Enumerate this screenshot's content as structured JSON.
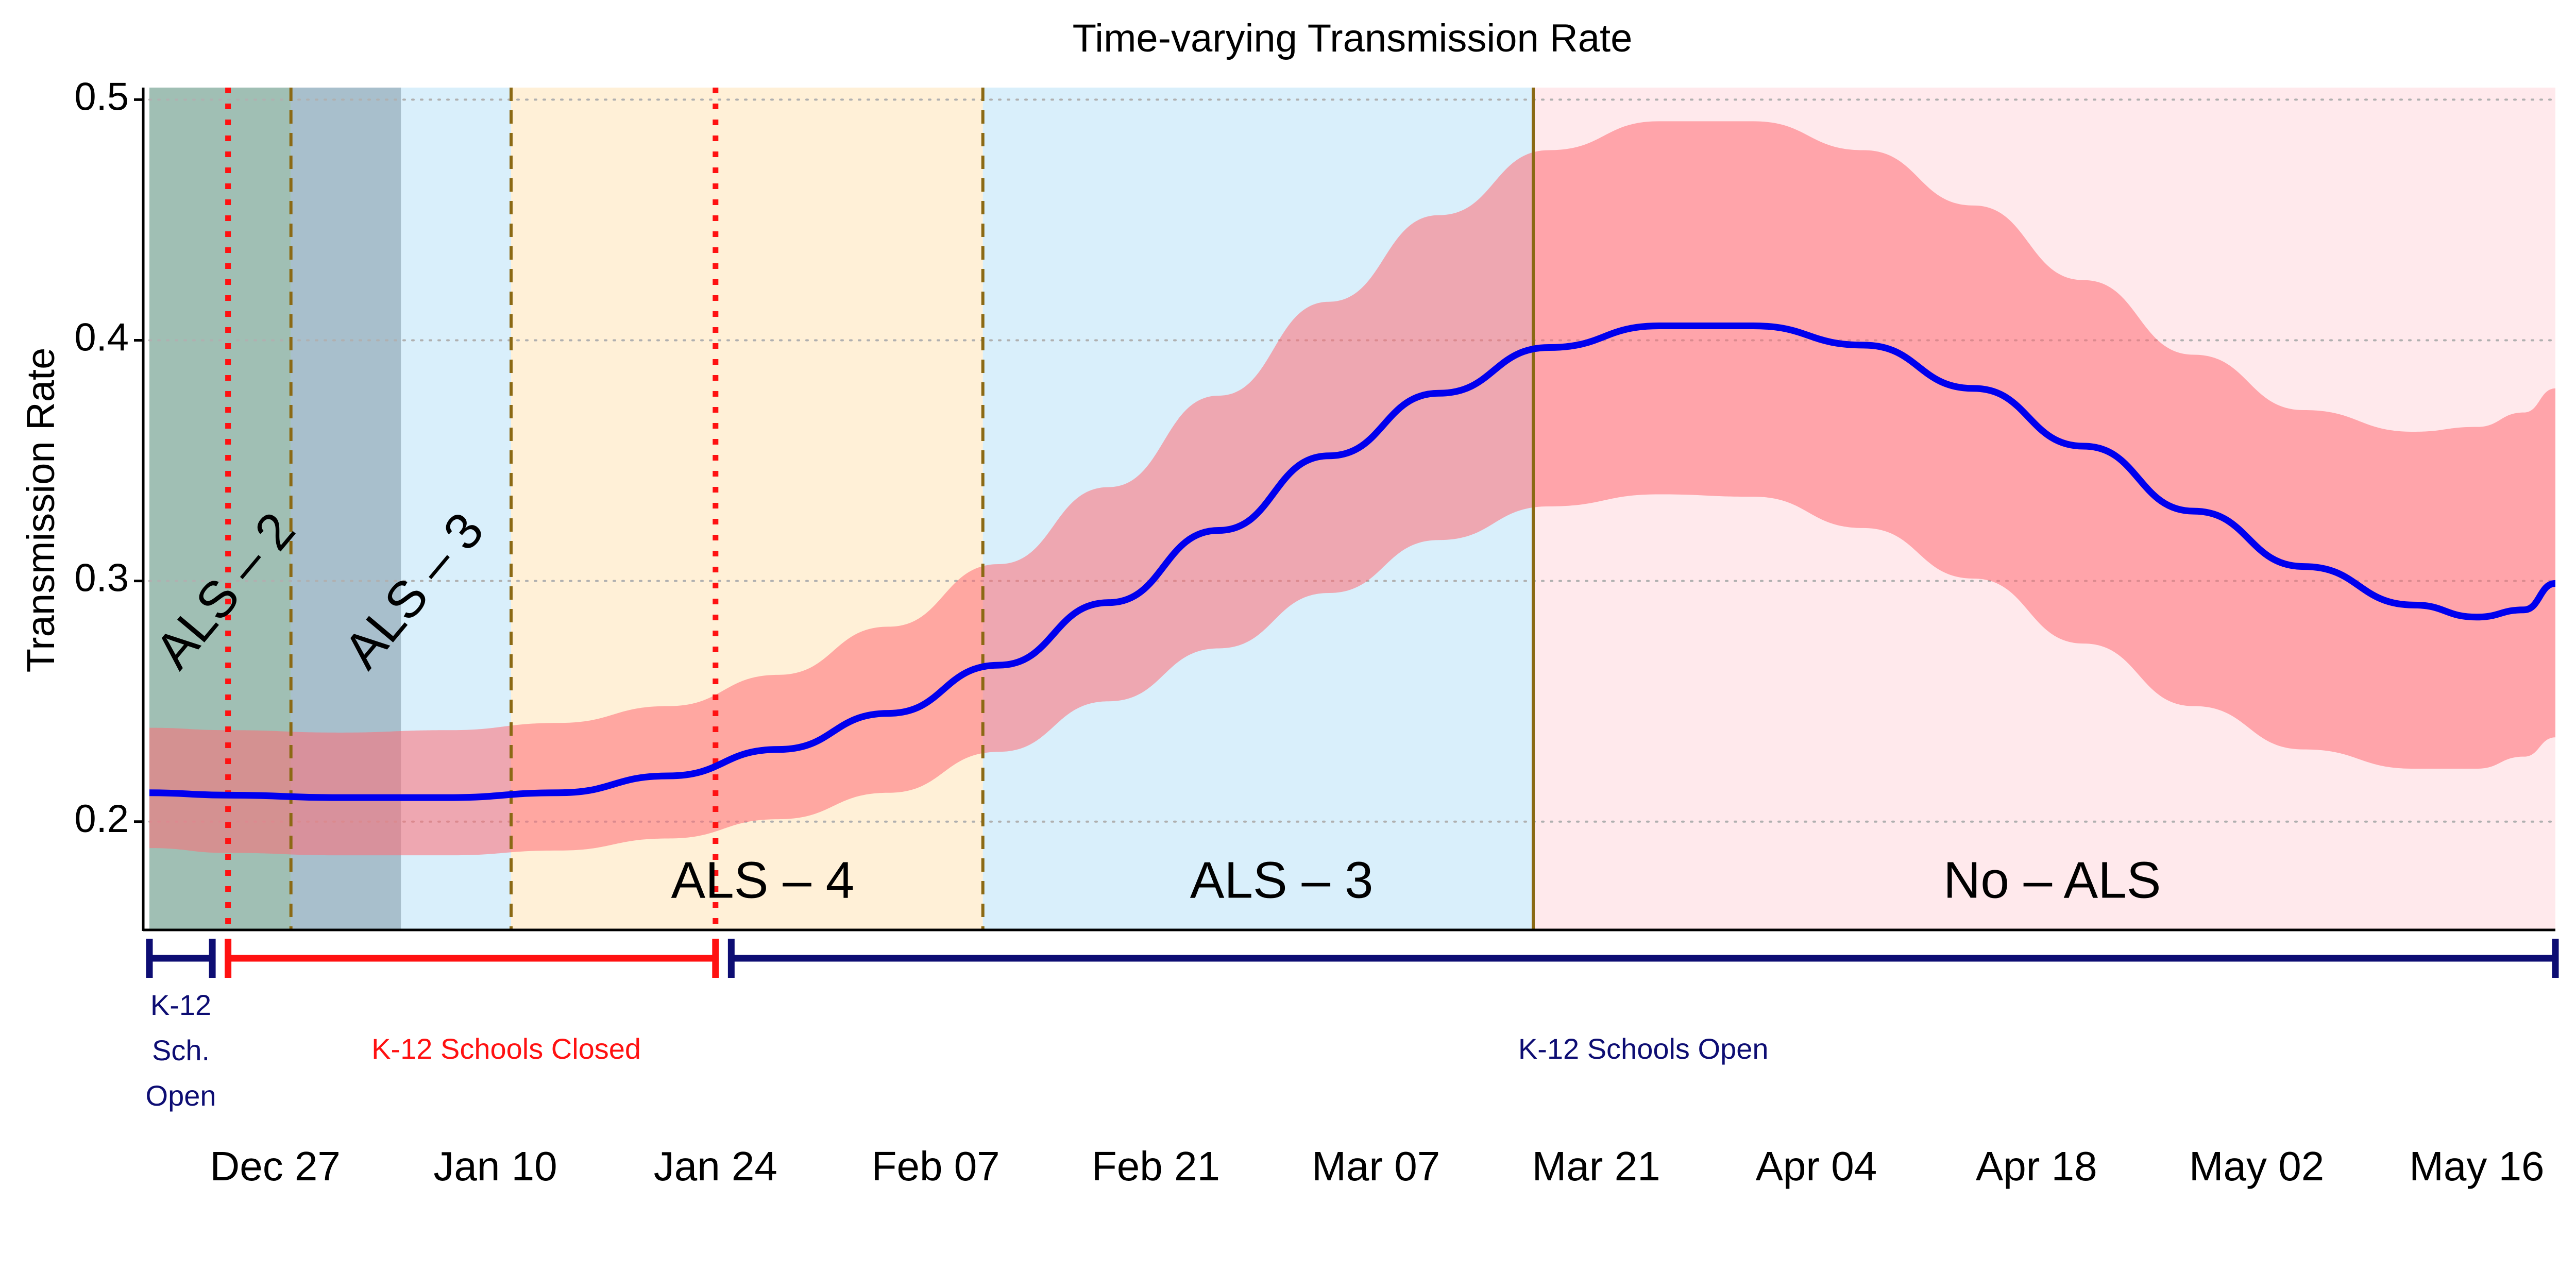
{
  "chart_data": {
    "type": "line",
    "title": "Time-varying Transmission Rate",
    "xlabel": "",
    "ylabel": "Transmission Rate",
    "x_type": "date",
    "xlim": [
      "2020-12-19",
      "2021-05-21"
    ],
    "ylim": [
      0.155,
      0.505
    ],
    "y_ticks": [
      0.2,
      0.3,
      0.4,
      0.5
    ],
    "y_tick_labels": [
      "0.2",
      "0.3",
      "0.4",
      "0.5"
    ],
    "x_ticks": [
      "2020-12-27",
      "2021-01-10",
      "2021-01-24",
      "2021-02-07",
      "2021-02-21",
      "2021-03-07",
      "2021-03-21",
      "2021-04-04",
      "2021-04-18",
      "2021-05-02",
      "2021-05-16"
    ],
    "x_tick_labels": [
      "Dec 27",
      "Jan 10",
      "Jan 24",
      "Feb 07",
      "Feb 21",
      "Mar 07",
      "Mar 21",
      "Apr 04",
      "Apr 18",
      "May 02",
      "May 16"
    ],
    "grid": "horizontal dotted",
    "series": [
      {
        "kind": "line",
        "color": "#0000ee",
        "points": [
          [
            "2020-12-19",
            0.212
          ],
          [
            "2020-12-24",
            0.211
          ],
          [
            "2020-12-31",
            0.21
          ],
          [
            "2021-01-07",
            0.21
          ],
          [
            "2021-01-14",
            0.212
          ],
          [
            "2021-01-21",
            0.219
          ],
          [
            "2021-01-28",
            0.23
          ],
          [
            "2021-02-04",
            0.245
          ],
          [
            "2021-02-11",
            0.265
          ],
          [
            "2021-02-18",
            0.291
          ],
          [
            "2021-02-25",
            0.321
          ],
          [
            "2021-03-04",
            0.352
          ],
          [
            "2021-03-11",
            0.378
          ],
          [
            "2021-03-18",
            0.397
          ],
          [
            "2021-03-25",
            0.406
          ],
          [
            "2021-03-31",
            0.406
          ],
          [
            "2021-04-07",
            0.398
          ],
          [
            "2021-04-14",
            0.38
          ],
          [
            "2021-04-21",
            0.356
          ],
          [
            "2021-04-28",
            0.329
          ],
          [
            "2021-05-05",
            0.306
          ],
          [
            "2021-05-12",
            0.29
          ],
          [
            "2021-05-16",
            0.285
          ],
          [
            "2021-05-19",
            0.288
          ],
          [
            "2021-05-21",
            0.299
          ]
        ]
      },
      {
        "kind": "band",
        "color": "#ff6b74",
        "points": [
          [
            "2020-12-19",
            0.189,
            0.239
          ],
          [
            "2020-12-24",
            0.187,
            0.238
          ],
          [
            "2020-12-31",
            0.186,
            0.237
          ],
          [
            "2021-01-07",
            0.186,
            0.238
          ],
          [
            "2021-01-14",
            0.188,
            0.241
          ],
          [
            "2021-01-21",
            0.193,
            0.248
          ],
          [
            "2021-01-28",
            0.201,
            0.261
          ],
          [
            "2021-02-04",
            0.212,
            0.281
          ],
          [
            "2021-02-11",
            0.229,
            0.307
          ],
          [
            "2021-02-18",
            0.25,
            0.339
          ],
          [
            "2021-02-25",
            0.272,
            0.377
          ],
          [
            "2021-03-04",
            0.295,
            0.416
          ],
          [
            "2021-03-11",
            0.317,
            0.452
          ],
          [
            "2021-03-18",
            0.331,
            0.479
          ],
          [
            "2021-03-25",
            0.336,
            0.491
          ],
          [
            "2021-03-31",
            0.335,
            0.491
          ],
          [
            "2021-04-07",
            0.322,
            0.479
          ],
          [
            "2021-04-14",
            0.301,
            0.456
          ],
          [
            "2021-04-21",
            0.274,
            0.425
          ],
          [
            "2021-04-28",
            0.248,
            0.394
          ],
          [
            "2021-05-05",
            0.23,
            0.371
          ],
          [
            "2021-05-12",
            0.222,
            0.362
          ],
          [
            "2021-05-16",
            0.222,
            0.364
          ],
          [
            "2021-05-19",
            0.227,
            0.37
          ],
          [
            "2021-05-21",
            0.235,
            0.38
          ]
        ]
      }
    ],
    "regions": [
      {
        "from": "2020-12-19",
        "to": "2020-12-28",
        "color": "#a0bfb4"
      },
      {
        "from": "2020-12-28",
        "to": "2021-01-04",
        "color": "#a8bfcc"
      },
      {
        "from": "2021-01-04",
        "to": "2021-01-11",
        "color": "#d9effb"
      },
      {
        "from": "2021-01-11",
        "to": "2021-02-10",
        "color": "#fff0d7"
      },
      {
        "from": "2021-02-10",
        "to": "2021-03-17",
        "color": "#d9effb"
      },
      {
        "from": "2021-03-17",
        "to": "2021-05-21",
        "color": "#ffe9ec"
      }
    ],
    "vlines": [
      {
        "x": "2020-12-24",
        "style": "dotted",
        "color": "#ff1111"
      },
      {
        "x": "2021-01-24",
        "style": "dotted",
        "color": "#ff1111"
      },
      {
        "x": "2020-12-28",
        "style": "dashed",
        "color": "#8b6914"
      },
      {
        "x": "2021-01-11",
        "style": "dashed",
        "color": "#8b6914"
      },
      {
        "x": "2021-02-10",
        "style": "dashed",
        "color": "#8b6914"
      },
      {
        "x": "2021-03-17",
        "style": "solid",
        "color": "#8b6914"
      }
    ],
    "region_labels": [
      {
        "text": "ALS – 2",
        "x": "2020-12-24",
        "y": 0.295,
        "rotate": -50
      },
      {
        "text": "ALS – 3",
        "x": "2021-01-05",
        "y": 0.295,
        "rotate": -50
      },
      {
        "text": "ALS – 4",
        "x": "2021-01-27",
        "y": 0.174,
        "rotate": 0
      },
      {
        "text": "ALS – 3",
        "x": "2021-03-01",
        "y": 0.174,
        "rotate": 0
      },
      {
        "text": "No – ALS",
        "x": "2021-04-19",
        "y": 0.174,
        "rotate": 0
      }
    ],
    "school_periods": [
      {
        "from": "2020-12-19",
        "to": "2020-12-23",
        "color": "#0d0d73",
        "label": [
          "K-12",
          "Sch.",
          "Open"
        ]
      },
      {
        "from": "2020-12-24",
        "to": "2021-01-24",
        "color": "#ff1111",
        "label": [
          "K-12 Schools Closed"
        ]
      },
      {
        "from": "2021-01-25",
        "to": "2021-05-21",
        "color": "#0d0d73",
        "label": [
          "K-12 Schools Open"
        ]
      }
    ]
  }
}
